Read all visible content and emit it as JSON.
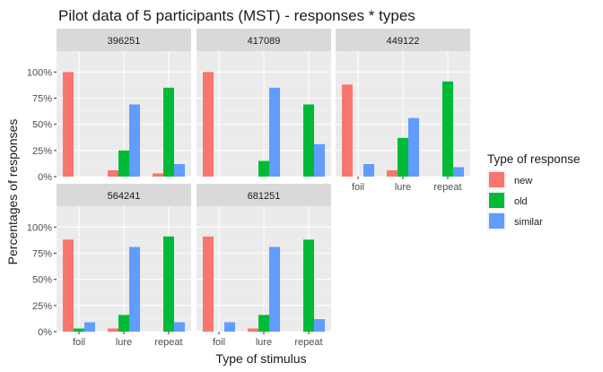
{
  "chart_data": {
    "type": "bar",
    "title": "Pilot data of 5 participants (MST) - responses * types",
    "xlabel": "Type of stimulus",
    "ylabel": "Percentages of responses",
    "categories": [
      "foil",
      "lure",
      "repeat"
    ],
    "ylim": [
      0,
      1.2
    ],
    "yticks": [
      0,
      0.25,
      0.5,
      0.75,
      1.0
    ],
    "ytick_labels": [
      "0%",
      "25%",
      "50%",
      "75%",
      "100%"
    ],
    "grid": true,
    "legend": {
      "title": "Type of response",
      "placement": "right",
      "items": [
        {
          "name": "new",
          "color": "#F8766D"
        },
        {
          "name": "old",
          "color": "#00BA38"
        },
        {
          "name": "similar",
          "color": "#619CFF"
        }
      ]
    },
    "panels": [
      {
        "label": "396251",
        "series": [
          {
            "name": "new",
            "values": [
              1.0,
              0.06,
              0.03
            ]
          },
          {
            "name": "old",
            "values": [
              0.0,
              0.25,
              0.85
            ]
          },
          {
            "name": "similar",
            "values": [
              0.0,
              0.69,
              0.12
            ]
          }
        ]
      },
      {
        "label": "417089",
        "series": [
          {
            "name": "new",
            "values": [
              1.0,
              0.0,
              0.0
            ]
          },
          {
            "name": "old",
            "values": [
              0.0,
              0.15,
              0.69
            ]
          },
          {
            "name": "similar",
            "values": [
              0.0,
              0.85,
              0.31
            ]
          }
        ]
      },
      {
        "label": "449122",
        "series": [
          {
            "name": "new",
            "values": [
              0.88,
              0.06,
              0.0
            ]
          },
          {
            "name": "old",
            "values": [
              0.0,
              0.37,
              0.91
            ]
          },
          {
            "name": "similar",
            "values": [
              0.12,
              0.56,
              0.09
            ]
          }
        ]
      },
      {
        "label": "564241",
        "series": [
          {
            "name": "new",
            "values": [
              0.88,
              0.03,
              0.0
            ]
          },
          {
            "name": "old",
            "values": [
              0.03,
              0.16,
              0.91
            ]
          },
          {
            "name": "similar",
            "values": [
              0.09,
              0.81,
              0.09
            ]
          }
        ]
      },
      {
        "label": "681251",
        "series": [
          {
            "name": "new",
            "values": [
              0.91,
              0.03,
              0.0
            ]
          },
          {
            "name": "old",
            "values": [
              0.0,
              0.16,
              0.88
            ]
          },
          {
            "name": "similar",
            "values": [
              0.09,
              0.81,
              0.12
            ]
          }
        ]
      }
    ]
  }
}
